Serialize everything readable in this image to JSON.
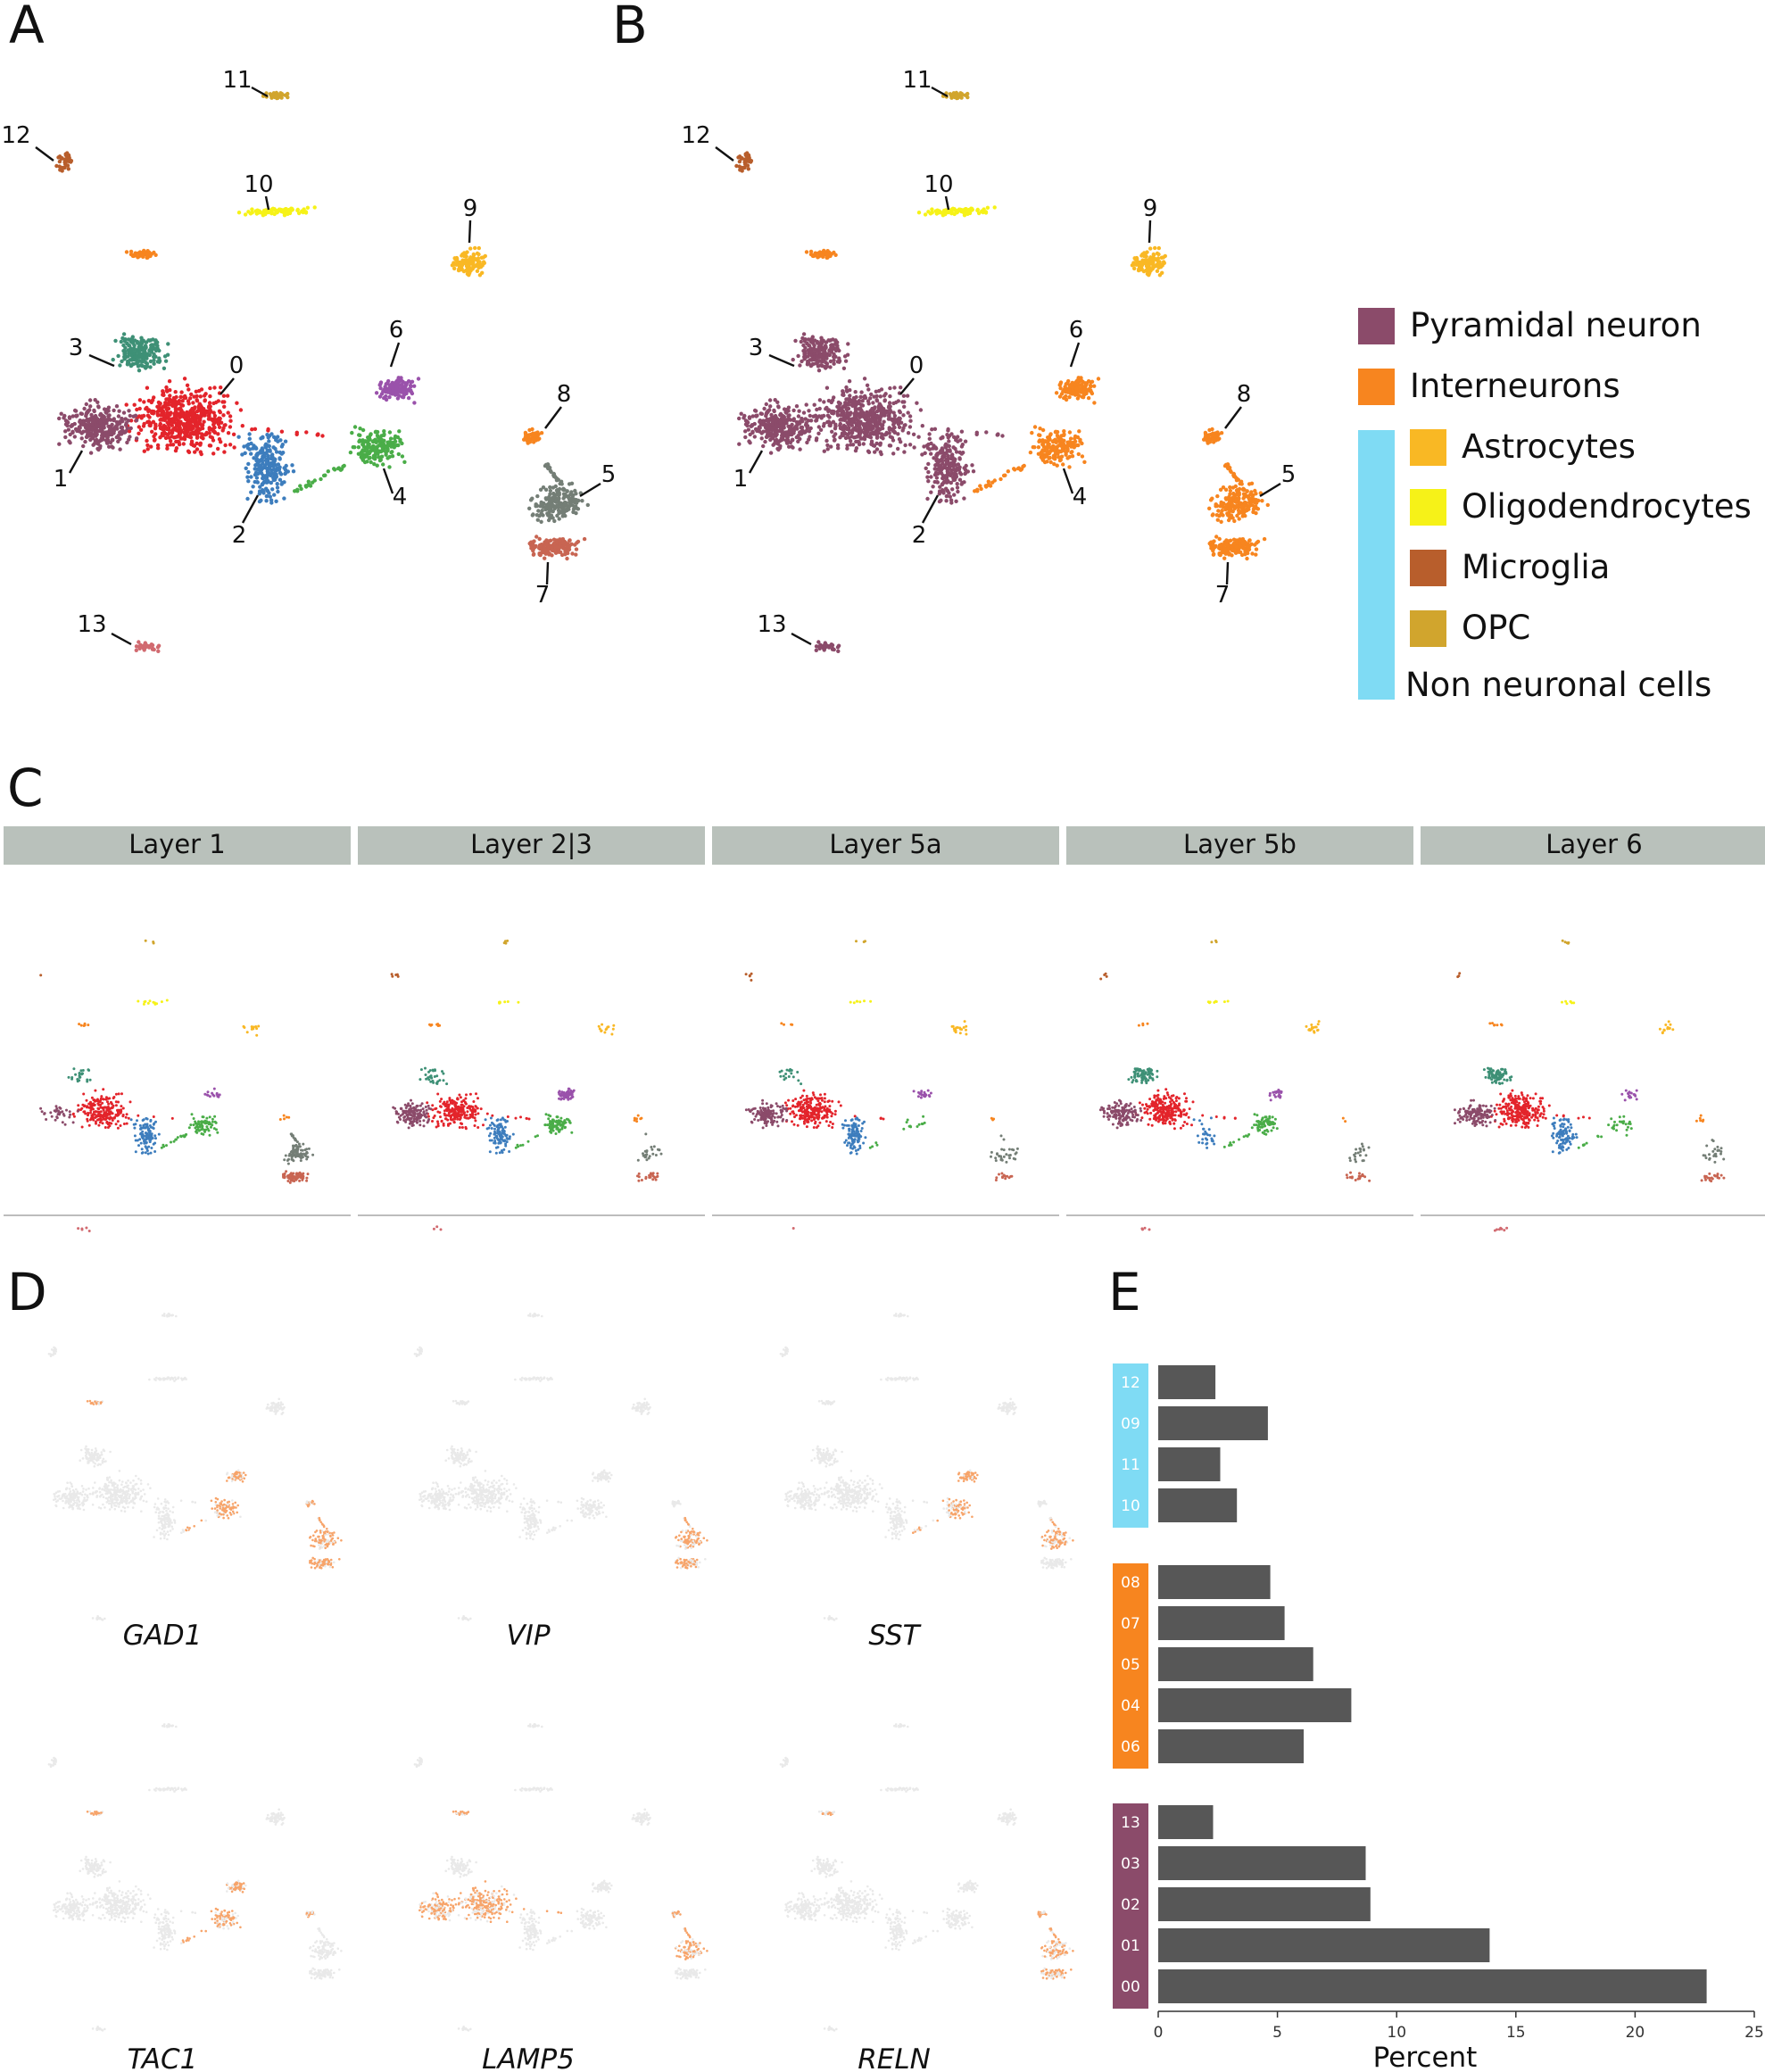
{
  "panels": {
    "a": "A",
    "b": "B",
    "c": "C",
    "d": "D",
    "e": "E"
  },
  "colors": {
    "c0": "#e3242b",
    "c1": "#8b4b6a",
    "c2": "#3d7dbd",
    "c3": "#3e9076",
    "c4": "#4aad48",
    "c5": "#747e76",
    "c6": "#9a52ab",
    "c7": "#c86552",
    "c8": "#f7851f",
    "c9": "#f9b824",
    "c10": "#f6f218",
    "c11": "#d1a52d",
    "c12": "#b85e2c",
    "c13": "#d16a70",
    "pyramidal": "#8b4b6a",
    "interneuron": "#f7851f",
    "non_neuronal": "#7fdbf4",
    "bar": "#575757",
    "strip": "#b9c1bb",
    "gene_low": "#e9e9e9",
    "gene_high": "#f7a46a"
  },
  "cluster_labels": [
    "0",
    "1",
    "2",
    "3",
    "4",
    "5",
    "6",
    "7",
    "8",
    "9",
    "10",
    "11",
    "12",
    "13"
  ],
  "legend": {
    "pyramidal": "Pyramidal neuron",
    "interneurons": "Interneurons",
    "astrocytes": "Astrocytes",
    "oligodendrocytes": "Oligodendrocytes",
    "microglia": "Microglia",
    "opc": "OPC",
    "non_neuronal": "Non neuronal cells"
  },
  "layers": [
    "Layer 1",
    "Layer 2|3",
    "Layer 5a",
    "Layer 5b",
    "Layer 6"
  ],
  "genes": [
    "GAD1",
    "VIP",
    "SST",
    "TAC1",
    "LAMP5",
    "RELN"
  ],
  "chart_data": {
    "type": "bar",
    "orientation": "horizontal",
    "xlabel": "Percent",
    "xlim": [
      0,
      25
    ],
    "xticks": [
      0,
      5,
      10,
      15,
      20,
      25
    ],
    "groups": [
      {
        "name": "Non neuronal cells",
        "color": "#7fdbf4",
        "rows": [
          {
            "label": "12",
            "value": 2.4
          },
          {
            "label": "09",
            "value": 4.6
          },
          {
            "label": "11",
            "value": 2.6
          },
          {
            "label": "10",
            "value": 3.3
          }
        ]
      },
      {
        "name": "Interneurons",
        "color": "#f7851f",
        "rows": [
          {
            "label": "08",
            "value": 4.7
          },
          {
            "label": "07",
            "value": 5.3
          },
          {
            "label": "05",
            "value": 6.5
          },
          {
            "label": "04",
            "value": 8.1
          },
          {
            "label": "06",
            "value": 6.1
          }
        ]
      },
      {
        "name": "Pyramidal neuron",
        "color": "#8b4b6a",
        "rows": [
          {
            "label": "13",
            "value": 2.3
          },
          {
            "label": "03",
            "value": 8.7
          },
          {
            "label": "02",
            "value": 8.9
          },
          {
            "label": "01",
            "value": 13.9
          },
          {
            "label": "00",
            "value": 23.0
          }
        ]
      }
    ]
  }
}
